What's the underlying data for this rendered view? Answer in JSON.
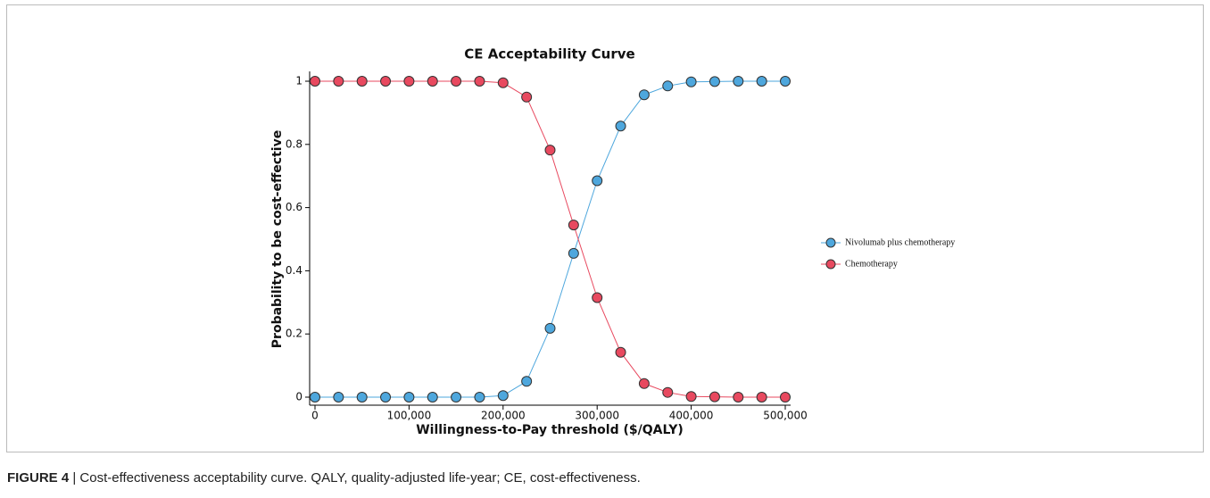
{
  "chart_data": {
    "type": "line",
    "title": "CE Acceptability Curve",
    "xlabel": "Willingness-to-Pay threshold ($/QALY)",
    "ylabel": "Probability to be cost-effective",
    "x": [
      0,
      25000,
      50000,
      75000,
      100000,
      125000,
      150000,
      175000,
      200000,
      225000,
      250000,
      275000,
      300000,
      325000,
      350000,
      375000,
      400000,
      425000,
      450000,
      475000,
      500000
    ],
    "series": [
      {
        "name": "Nivolumab plus chemotherapy",
        "color": "#4ea7dd",
        "values": [
          0,
          0,
          0,
          0,
          0,
          0,
          0,
          0,
          0.005,
          0.05,
          0.218,
          0.455,
          0.685,
          0.858,
          0.957,
          0.985,
          0.998,
          0.999,
          1,
          1,
          1
        ]
      },
      {
        "name": "Chemotherapy",
        "color": "#e8495f",
        "values": [
          1,
          1,
          1,
          1,
          1,
          1,
          1,
          1,
          0.995,
          0.95,
          0.782,
          0.545,
          0.315,
          0.142,
          0.043,
          0.015,
          0.002,
          0.001,
          0,
          0,
          0
        ]
      }
    ],
    "xlim": [
      0,
      500000
    ],
    "xticks": [
      0,
      {
        "value": 100000,
        "label": "100,000"
      },
      {
        "value": 200000,
        "label": "200,000"
      },
      {
        "value": 300000,
        "label": "300,000"
      },
      {
        "value": 400000,
        "label": "400,000"
      },
      {
        "value": 500000,
        "label": "500,000"
      }
    ],
    "ylim": [
      0,
      1
    ],
    "yticks": [
      0,
      0.2,
      0.4,
      0.6,
      0.8,
      1
    ],
    "legend": "right"
  },
  "caption_label": "FIGURE 4",
  "caption_text": "Cost-effectiveness acceptability curve. QALY, quality-adjusted life-year; CE, cost-effectiveness."
}
